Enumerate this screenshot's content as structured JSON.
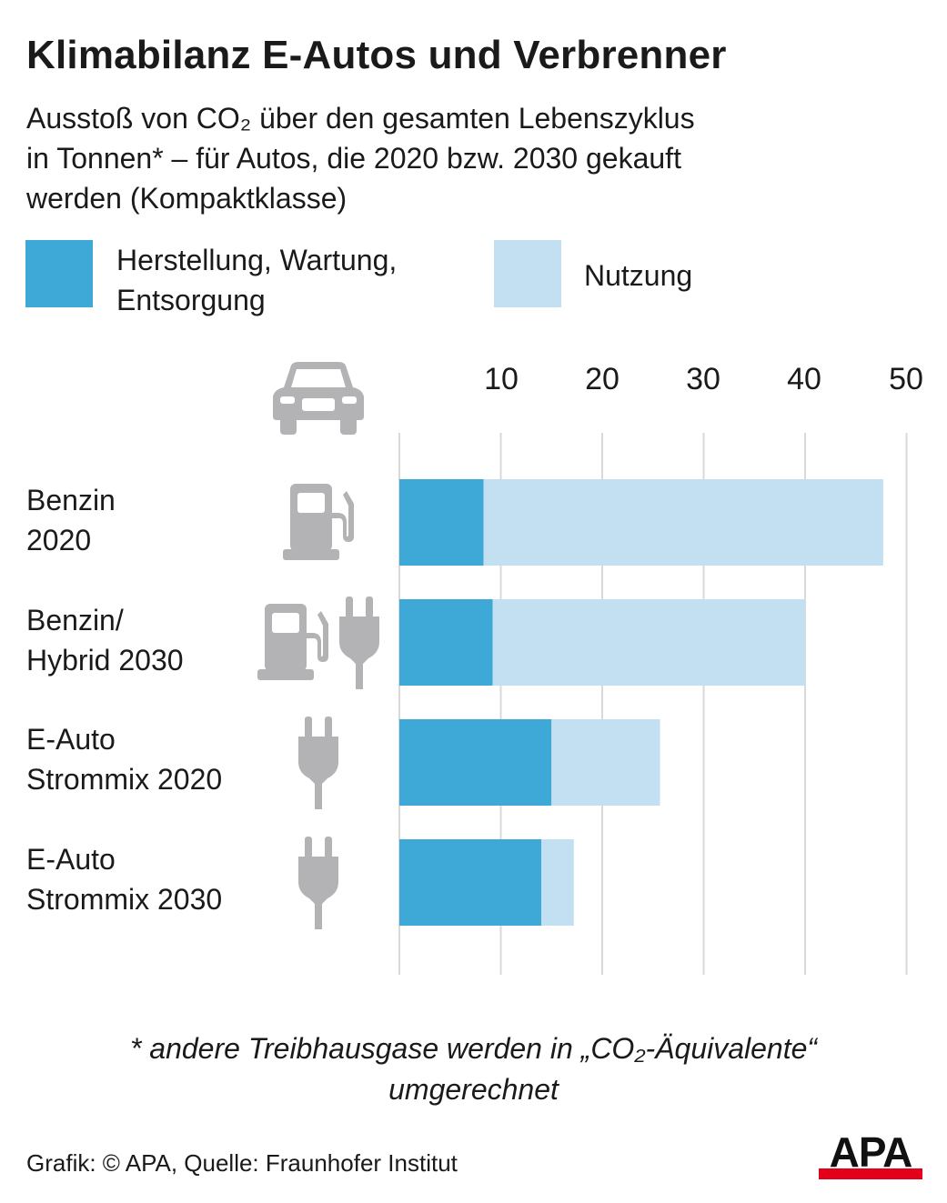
{
  "title": "Klimabilanz E-Autos und Verbrenner",
  "subtitle": {
    "line1": "Ausstoß von CO₂ über den gesamten Lebenszyklus",
    "line2": "in Tonnen* – für Autos, die 2020 bzw. 2030 gekauft",
    "line3": "werden (Kompaktklasse)"
  },
  "legend": [
    {
      "label_line1": "Herstellung, Wartung,",
      "label_line2": "Entsorgung",
      "color": "#3ea8d6"
    },
    {
      "label_line1": "Nutzung",
      "label_line2": "",
      "color": "#c2e0f1"
    }
  ],
  "chart_data": {
    "type": "bar",
    "orientation": "horizontal",
    "stacked": true,
    "categories": [
      {
        "line1": "Benzin",
        "line2": "2020",
        "icons": [
          "fuel-pump-icon"
        ]
      },
      {
        "line1": "Benzin/",
        "line2": "Hybrid 2030",
        "icons": [
          "fuel-pump-icon",
          "plug-icon"
        ]
      },
      {
        "line1": "E-Auto",
        "line2": "Strommix 2020",
        "icons": [
          "plug-icon"
        ]
      },
      {
        "line1": "E-Auto",
        "line2": "Strommix 2030",
        "icons": [
          "plug-icon"
        ]
      }
    ],
    "series": [
      {
        "name": "Herstellung, Wartung, Entsorgung",
        "values": [
          8.3,
          9.2,
          15.0,
          14.0
        ],
        "color": "#3ea8d6"
      },
      {
        "name": "Nutzung",
        "values": [
          39.4,
          30.8,
          10.7,
          3.2
        ],
        "color": "#c2e0f1"
      }
    ],
    "xlim": [
      0,
      50
    ],
    "xticks": [
      10,
      20,
      30,
      40,
      50
    ],
    "grid": true,
    "axis_icon": "car-icon",
    "xlabel": "",
    "ylabel": ""
  },
  "footnote": {
    "line1": "* andere Treibhausgase werden in „CO₂-Äquivalente“",
    "line2": "umgerechnet"
  },
  "source": "Grafik: © APA, Quelle: Fraunhofer Institut",
  "logo": "APA",
  "icon_color": "#b3b3b5",
  "grid_color": "#d9d9d9"
}
